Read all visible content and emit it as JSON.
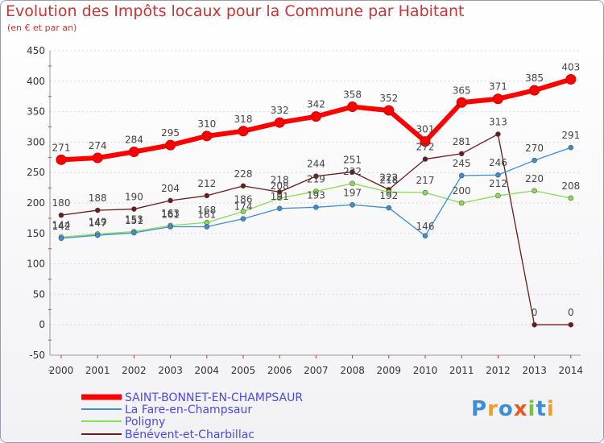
{
  "chart_data": {
    "type": "line",
    "title": "Evolution des Impôts locaux pour la Commune par Habitant",
    "subtitle": "(en € et par an)",
    "x": [
      "2000",
      "2001",
      "2002",
      "2003",
      "2004",
      "2005",
      "2006",
      "2007",
      "2008",
      "2009",
      "2010",
      "2011",
      "2012",
      "2013",
      "2014"
    ],
    "ylim": [
      -50,
      450
    ],
    "yticks": [
      -50,
      0,
      50,
      100,
      150,
      200,
      250,
      300,
      350,
      400,
      450
    ],
    "series": [
      {
        "name": "SAINT-BONNET-EN-CHAMPSAUR",
        "color": "#ff0000",
        "values": [
          271,
          274,
          284,
          295,
          310,
          318,
          332,
          342,
          358,
          352,
          301,
          365,
          371,
          385,
          403
        ]
      },
      {
        "name": "La Fare-en-Champsaur",
        "color": "#3a8fd0",
        "values": [
          142,
          147,
          151,
          161,
          161,
          174,
          191,
          193,
          197,
          192,
          146,
          245,
          246,
          270,
          291
        ]
      },
      {
        "name": "Poligny",
        "color": "#88dd55",
        "values": [
          144,
          149,
          153,
          163,
          168,
          186,
          208,
          219,
          232,
          218,
          217,
          200,
          212,
          220,
          208
        ]
      },
      {
        "name": "Bénévent-et-Charbillac",
        "color": "#6b1a1a",
        "values": [
          180,
          188,
          190,
          204,
          212,
          228,
          218,
          244,
          251,
          222,
          272,
          281,
          313,
          0,
          0
        ]
      }
    ]
  },
  "branding": {
    "logo_text": "Proxiti"
  }
}
